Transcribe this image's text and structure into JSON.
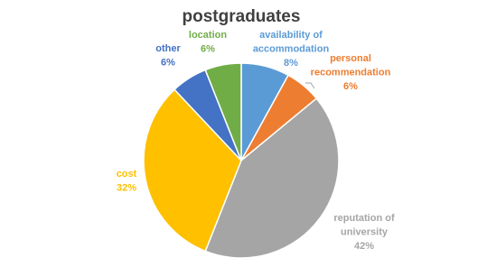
{
  "chart_data": {
    "type": "pie",
    "title": "postgraduates",
    "categories": [
      "availability of accommodation",
      "personal recommendation",
      "reputation of university",
      "cost",
      "other",
      "location"
    ],
    "values": [
      8,
      6,
      42,
      32,
      6,
      6
    ],
    "value_labels": [
      "8%",
      "6%",
      "42%",
      "32%",
      "6%",
      "6%"
    ],
    "colors": [
      "#5b9bd5",
      "#ed7d31",
      "#a5a5a5",
      "#ffc000",
      "#4472c4",
      "#70ad47"
    ]
  }
}
